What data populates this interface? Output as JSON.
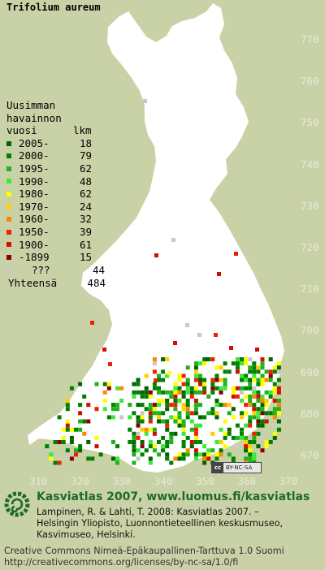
{
  "title": "Trifolium aureum",
  "legend": {
    "heading": [
      "Uusimman",
      "havainnon"
    ],
    "col_year": "vuosi",
    "col_count": "lkm",
    "entries": [
      {
        "label": "2005-",
        "count": "18",
        "color": "#006400"
      },
      {
        "label": "2000-",
        "count": "79",
        "color": "#008000"
      },
      {
        "label": "1995-",
        "count": "62",
        "color": "#22b11d"
      },
      {
        "label": "1990-",
        "count": "48",
        "color": "#3ee83a"
      },
      {
        "label": "1980-",
        "count": "62",
        "color": "#ffff00"
      },
      {
        "label": "1970-",
        "count": "24",
        "color": "#ffd000"
      },
      {
        "label": "1960-",
        "count": "32",
        "color": "#ff8800"
      },
      {
        "label": "1950-",
        "count": "39",
        "color": "#ee2200"
      },
      {
        "label": "1900-",
        "count": "61",
        "color": "#cc1100"
      },
      {
        "label": "-1899",
        "count": "15",
        "color": "#8a0000"
      },
      {
        "label": "???",
        "count": "44",
        "color": "#c8c8c8"
      }
    ],
    "total_label": "Yhteensä",
    "total_count": "484"
  },
  "y_axis": [
    "770",
    "760",
    "750",
    "740",
    "730",
    "720",
    "710",
    "700",
    "690",
    "680",
    "670"
  ],
  "x_axis": [
    "310",
    "320",
    "330",
    "340",
    "350",
    "360",
    "370"
  ],
  "map_colors": {
    "land": "#ffffff",
    "background": "#c9d2a6",
    "border": "#c9d2a6"
  },
  "license_badge": {
    "cc": "cc",
    "text": "BY-NC-SA"
  },
  "footer": {
    "atlas_title": "Kasviatlas 2007, www.luomus.fi/kasviatlas",
    "citation_lines": [
      "Lampinen, R. & Lahti, T. 2008: Kasviatlas 2007. –",
      "Helsingin Yliopisto, Luonnontieteellinen keskusmuseo,",
      "Kasvimuseo, Helsinki."
    ],
    "license_lines": [
      "Creative Commons Nimeä-Epäkaupallinen-Tarttuva 1.0 Suomi",
      "http://creativecommons.org/licenses/by-nc-sa/1.0/fi"
    ]
  }
}
